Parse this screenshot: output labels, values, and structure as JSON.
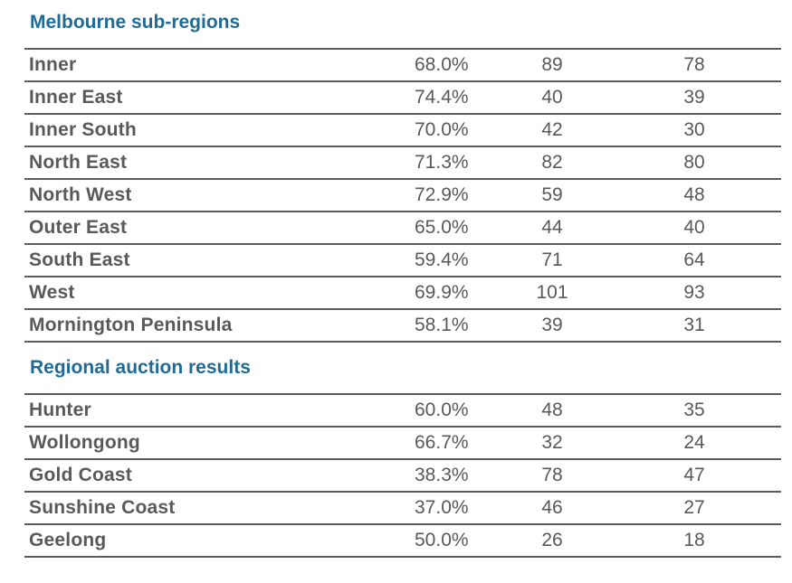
{
  "melbourne": {
    "title": "Melbourne sub-regions",
    "rows": [
      {
        "name": "Inner",
        "pct": "68.0%",
        "v1": "89",
        "v2": "78"
      },
      {
        "name": "Inner East",
        "pct": "74.4%",
        "v1": "40",
        "v2": "39"
      },
      {
        "name": "Inner South",
        "pct": "70.0%",
        "v1": "42",
        "v2": "30"
      },
      {
        "name": "North East",
        "pct": "71.3%",
        "v1": "82",
        "v2": "80"
      },
      {
        "name": "North West",
        "pct": "72.9%",
        "v1": "59",
        "v2": "48"
      },
      {
        "name": "Outer East",
        "pct": "65.0%",
        "v1": "44",
        "v2": "40"
      },
      {
        "name": "South East",
        "pct": "59.4%",
        "v1": "71",
        "v2": "64"
      },
      {
        "name": "West",
        "pct": "69.9%",
        "v1": "101",
        "v2": "93"
      },
      {
        "name": "Mornington Peninsula",
        "pct": "58.1%",
        "v1": "39",
        "v2": "31"
      }
    ]
  },
  "regional": {
    "title": "Regional auction results",
    "rows": [
      {
        "name": "Hunter",
        "pct": "60.0%",
        "v1": "48",
        "v2": "35"
      },
      {
        "name": "Wollongong",
        "pct": "66.7%",
        "v1": "32",
        "v2": "24"
      },
      {
        "name": "Gold Coast",
        "pct": "38.3%",
        "v1": "78",
        "v2": "47"
      },
      {
        "name": "Sunshine Coast",
        "pct": "37.0%",
        "v1": "46",
        "v2": "27"
      },
      {
        "name": "Geelong",
        "pct": "50.0%",
        "v1": "26",
        "v2": "18"
      }
    ]
  }
}
